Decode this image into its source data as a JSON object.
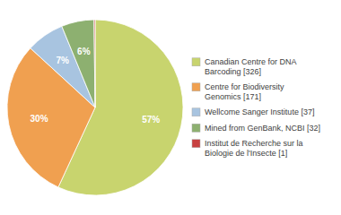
{
  "chart_data": {
    "type": "pie",
    "categories": [
      "Canadian Centre for DNA\nBarcoding [326]",
      "Centre for Biodiversity\nGenomics [171]",
      "Wellcome Sanger Institute [37]",
      "Mined from GenBank, NCBI [32]",
      "Institut de Recherche sur la\nBiologie de l'Insecte [1]"
    ],
    "values": [
      57,
      30,
      7,
      6,
      0.2
    ],
    "value_labels": [
      "57%",
      "30%",
      "7%",
      "6%",
      null
    ],
    "data_labels": true,
    "colors": [
      "#c8d46e",
      "#f0a050",
      "#a8c4e0",
      "#8db070",
      "#c84040"
    ],
    "legend": "right"
  }
}
